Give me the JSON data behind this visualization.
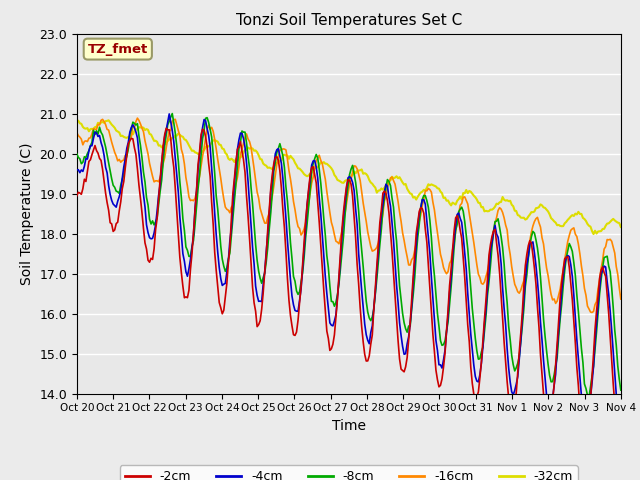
{
  "title": "Tonzi Soil Temperatures Set C",
  "xlabel": "Time",
  "ylabel": "Soil Temperature (C)",
  "ylim": [
    14.0,
    23.0
  ],
  "yticks": [
    14.0,
    15.0,
    16.0,
    17.0,
    18.0,
    19.0,
    20.0,
    21.0,
    22.0,
    23.0
  ],
  "xtick_labels": [
    "Oct 20",
    "Oct 21",
    "Oct 22",
    "Oct 23",
    "Oct 24",
    "Oct 25",
    "Oct 26",
    "Oct 27",
    "Oct 28",
    "Oct 29",
    "Oct 30",
    "Oct 31",
    "Nov 1",
    "Nov 2",
    "Nov 3",
    "Nov 4"
  ],
  "colors": {
    "-2cm": "#cc0000",
    "-4cm": "#0000cc",
    "-8cm": "#00aa00",
    "-16cm": "#ff8800",
    "-32cm": "#dddd00"
  },
  "annotation_text": "TZ_fmet",
  "annotation_color": "#990000",
  "annotation_bg": "#ffffcc",
  "annotation_border": "#999966",
  "fig_bg": "#ebebeb",
  "plot_bg": "#e8e8e8",
  "grid_color": "#ffffff",
  "n_points": 360,
  "legend_labels": [
    "-2cm",
    "-4cm",
    "-8cm",
    "-16cm",
    "-32cm"
  ]
}
